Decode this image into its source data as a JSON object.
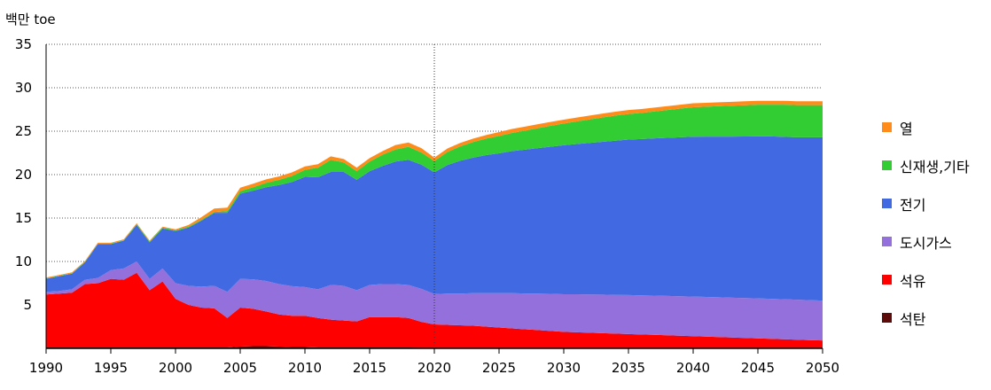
{
  "chart_data": {
    "type": "area",
    "stacked": true,
    "ylabel": "백만 toe",
    "ylim": [
      0,
      35
    ],
    "yticks": [
      5,
      10,
      15,
      20,
      25,
      30,
      35
    ],
    "xlim": [
      1990,
      2050
    ],
    "xticks": [
      1990,
      1995,
      2000,
      2005,
      2010,
      2015,
      2020,
      2025,
      2030,
      2035,
      2040,
      2045,
      2050
    ],
    "vline": 2020,
    "grid": "horizontal dotted",
    "legend_position": "right",
    "x": [
      1990,
      1991,
      1992,
      1993,
      1994,
      1995,
      1996,
      1997,
      1998,
      1999,
      2000,
      2001,
      2002,
      2003,
      2004,
      2005,
      2006,
      2007,
      2008,
      2009,
      2010,
      2011,
      2012,
      2013,
      2014,
      2015,
      2016,
      2017,
      2018,
      2019,
      2020,
      2021,
      2022,
      2023,
      2024,
      2025,
      2026,
      2027,
      2028,
      2029,
      2030,
      2031,
      2032,
      2033,
      2034,
      2035,
      2036,
      2037,
      2038,
      2039,
      2040,
      2041,
      2042,
      2043,
      2044,
      2045,
      2046,
      2047,
      2048,
      2049,
      2050
    ],
    "series": [
      {
        "name": "석탄",
        "color": "#5c0a0a",
        "values": [
          0.1,
          0.1,
          0.1,
          0.1,
          0.1,
          0.1,
          0.1,
          0.1,
          0.1,
          0.1,
          0.1,
          0.1,
          0.1,
          0.1,
          0.1,
          0.2,
          0.25,
          0.25,
          0.2,
          0.15,
          0.15,
          0.1,
          0.1,
          0.1,
          0.1,
          0.1,
          0.1,
          0.1,
          0.1,
          0.05,
          0.05,
          0.05,
          0.05,
          0.05,
          0.05,
          0.05,
          0.05,
          0.05,
          0.05,
          0.05,
          0.05,
          0.05,
          0.05,
          0.05,
          0.05,
          0.05,
          0.05,
          0.05,
          0.05,
          0.05,
          0.05,
          0.05,
          0.05,
          0.05,
          0.05,
          0.05,
          0.05,
          0.05,
          0.05,
          0.05,
          0.05
        ]
      },
      {
        "name": "석유",
        "color": "#ff0000",
        "values": [
          6.1,
          6.2,
          6.3,
          7.3,
          7.4,
          7.9,
          7.8,
          8.6,
          6.6,
          7.6,
          5.6,
          4.9,
          4.6,
          4.5,
          3.4,
          4.5,
          4.3,
          4.0,
          3.7,
          3.6,
          3.6,
          3.4,
          3.2,
          3.1,
          3.0,
          3.5,
          3.5,
          3.5,
          3.4,
          3.0,
          2.7,
          2.65,
          2.6,
          2.55,
          2.45,
          2.35,
          2.25,
          2.15,
          2.05,
          1.95,
          1.85,
          1.8,
          1.75,
          1.7,
          1.65,
          1.6,
          1.55,
          1.5,
          1.45,
          1.4,
          1.35,
          1.3,
          1.25,
          1.2,
          1.15,
          1.1,
          1.05,
          1.0,
          0.95,
          0.9,
          0.85
        ]
      },
      {
        "name": "도시가스",
        "color": "#9370db",
        "values": [
          0.3,
          0.3,
          0.4,
          0.5,
          0.6,
          1.0,
          1.3,
          1.3,
          1.3,
          1.5,
          1.8,
          2.2,
          2.4,
          2.6,
          3.0,
          3.3,
          3.4,
          3.5,
          3.5,
          3.4,
          3.3,
          3.3,
          4.0,
          4.0,
          3.6,
          3.7,
          3.8,
          3.8,
          3.8,
          3.8,
          3.5,
          3.6,
          3.65,
          3.75,
          3.85,
          3.95,
          4.05,
          4.12,
          4.2,
          4.27,
          4.33,
          4.37,
          4.4,
          4.43,
          4.45,
          4.48,
          4.5,
          4.52,
          4.53,
          4.55,
          4.56,
          4.57,
          4.58,
          4.58,
          4.59,
          4.6,
          4.6,
          4.6,
          4.6,
          4.6,
          4.6
        ]
      },
      {
        "name": "전기",
        "color": "#4169e1",
        "values": [
          1.5,
          1.7,
          1.8,
          2.0,
          3.9,
          3.0,
          3.2,
          4.2,
          4.2,
          4.6,
          6.0,
          6.7,
          7.6,
          8.4,
          9.1,
          9.8,
          10.2,
          10.8,
          11.4,
          12.0,
          12.7,
          12.9,
          13.0,
          13.1,
          12.7,
          13.1,
          13.6,
          14.1,
          14.4,
          14.3,
          14.0,
          14.8,
          15.3,
          15.6,
          15.9,
          16.1,
          16.35,
          16.55,
          16.75,
          16.95,
          17.15,
          17.3,
          17.45,
          17.6,
          17.75,
          17.9,
          18.0,
          18.1,
          18.2,
          18.3,
          18.4,
          18.45,
          18.5,
          18.55,
          18.6,
          18.65,
          18.7,
          18.7,
          18.7,
          18.75,
          18.8
        ]
      },
      {
        "name": "신재생,기타",
        "color": "#32cd32",
        "values": [
          0.05,
          0.05,
          0.05,
          0.05,
          0.05,
          0.05,
          0.05,
          0.1,
          0.1,
          0.1,
          0.1,
          0.1,
          0.1,
          0.1,
          0.2,
          0.3,
          0.4,
          0.5,
          0.6,
          0.7,
          0.8,
          1.1,
          1.4,
          1.1,
          1.0,
          1.1,
          1.3,
          1.4,
          1.5,
          1.4,
          1.3,
          1.5,
          1.65,
          1.8,
          1.9,
          2.0,
          2.1,
          2.2,
          2.3,
          2.4,
          2.5,
          2.6,
          2.7,
          2.8,
          2.9,
          2.95,
          3.0,
          3.1,
          3.2,
          3.3,
          3.4,
          3.45,
          3.5,
          3.55,
          3.6,
          3.65,
          3.65,
          3.7,
          3.7,
          3.7,
          3.7
        ]
      },
      {
        "name": "열",
        "color": "#ff8c1a",
        "values": [
          0.1,
          0.1,
          0.1,
          0.1,
          0.1,
          0.1,
          0.1,
          0.1,
          0.1,
          0.1,
          0.1,
          0.2,
          0.3,
          0.4,
          0.4,
          0.4,
          0.4,
          0.4,
          0.4,
          0.4,
          0.4,
          0.4,
          0.4,
          0.4,
          0.4,
          0.4,
          0.4,
          0.5,
          0.5,
          0.5,
          0.4,
          0.4,
          0.4,
          0.4,
          0.4,
          0.45,
          0.45,
          0.45,
          0.45,
          0.45,
          0.45,
          0.45,
          0.45,
          0.45,
          0.45,
          0.45,
          0.45,
          0.45,
          0.45,
          0.45,
          0.45,
          0.45,
          0.45,
          0.45,
          0.45,
          0.45,
          0.45,
          0.45,
          0.45,
          0.45,
          0.45
        ]
      }
    ]
  },
  "legend": [
    {
      "label": "열",
      "color": "#ff8c1a"
    },
    {
      "label": "신재생,기타",
      "color": "#32cd32"
    },
    {
      "label": "전기",
      "color": "#4169e1"
    },
    {
      "label": "도시가스",
      "color": "#9370db"
    },
    {
      "label": "석유",
      "color": "#ff0000"
    },
    {
      "label": "석탄",
      "color": "#5c0a0a"
    }
  ]
}
